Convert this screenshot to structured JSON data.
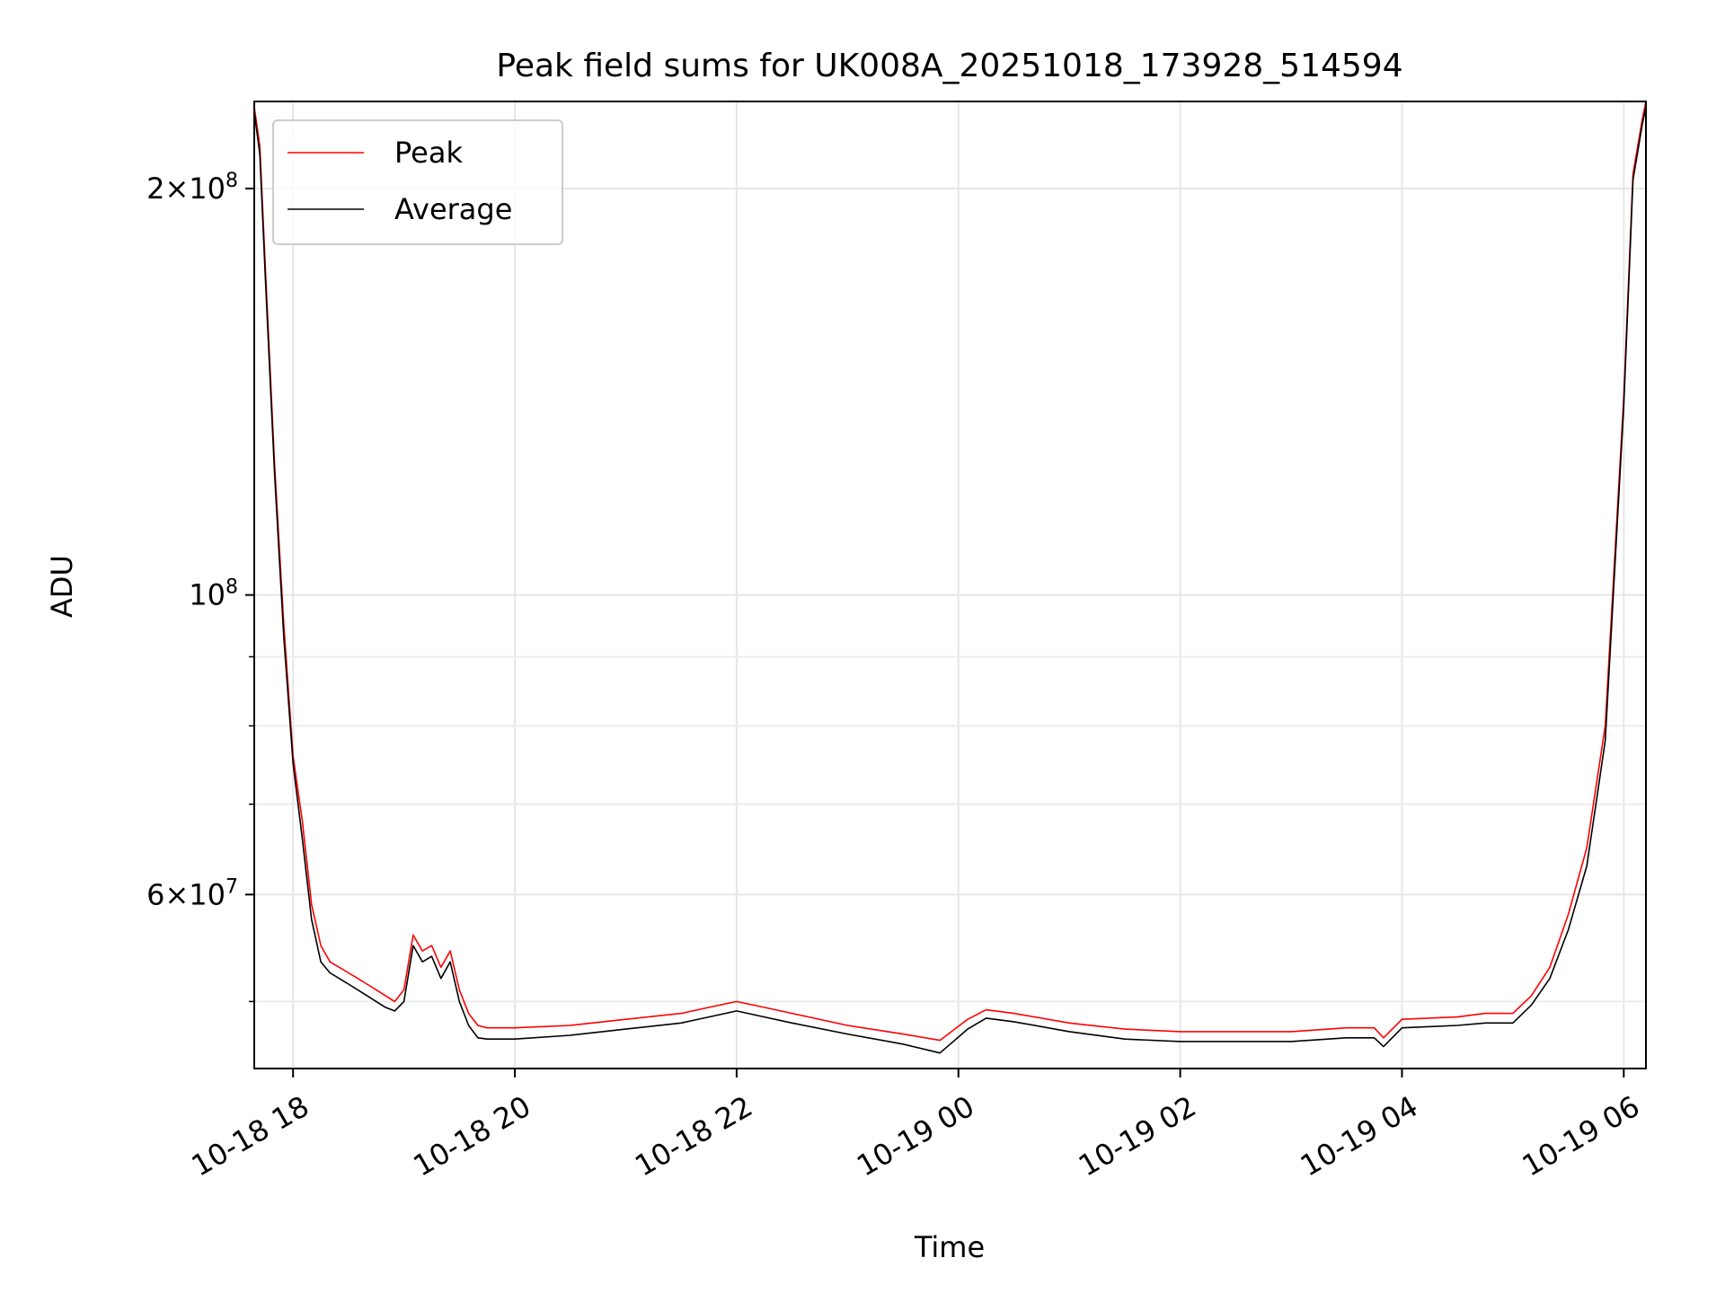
{
  "chart_data": {
    "type": "line",
    "title": "Peak field sums for UK008A_20251018_173928_514594",
    "xlabel": "Time",
    "ylabel": "ADU",
    "yscale": "log",
    "xlim": [
      "2025-10-18 17:39",
      "2025-10-19 06:12"
    ],
    "ylim": [
      44600000,
      232000000
    ],
    "grid": true,
    "legend": "top-left",
    "x_ticks": [
      "10-18 18",
      "10-18 20",
      "10-18 22",
      "10-19 00",
      "10-19 02",
      "10-19 04",
      "10-19 06"
    ],
    "x_tick_times": [
      "2025-10-18 18:00",
      "2025-10-18 20:00",
      "2025-10-18 22:00",
      "2025-10-19 00:00",
      "2025-10-19 02:00",
      "2025-10-19 04:00",
      "2025-10-19 06:00"
    ],
    "y_major_ticks": [
      {
        "value": 200000000,
        "mant": "2",
        "exp": "8"
      },
      {
        "value": 100000000,
        "mant": "",
        "exp": "8"
      },
      {
        "value": 60000000,
        "mant": "6",
        "exp": "7"
      }
    ],
    "y_minor_ticks": [
      50000000,
      70000000,
      80000000,
      90000000
    ],
    "series": [
      {
        "name": "Peak",
        "color": "#ff0000",
        "x": [
          "2025-10-18 17:39",
          "2025-10-18 17:42",
          "2025-10-18 17:45",
          "2025-10-18 17:50",
          "2025-10-18 17:55",
          "2025-10-18 18:00",
          "2025-10-18 18:05",
          "2025-10-18 18:10",
          "2025-10-18 18:15",
          "2025-10-18 18:20",
          "2025-10-18 18:25",
          "2025-10-18 18:30",
          "2025-10-18 18:35",
          "2025-10-18 18:40",
          "2025-10-18 18:45",
          "2025-10-18 18:50",
          "2025-10-18 18:55",
          "2025-10-18 19:00",
          "2025-10-18 19:05",
          "2025-10-18 19:10",
          "2025-10-18 19:15",
          "2025-10-18 19:20",
          "2025-10-18 19:25",
          "2025-10-18 19:30",
          "2025-10-18 19:35",
          "2025-10-18 19:40",
          "2025-10-18 19:45",
          "2025-10-18 19:50",
          "2025-10-18 19:55",
          "2025-10-18 20:00",
          "2025-10-18 20:30",
          "2025-10-18 21:00",
          "2025-10-18 21:30",
          "2025-10-18 21:45",
          "2025-10-18 22:00",
          "2025-10-18 22:15",
          "2025-10-18 22:30",
          "2025-10-18 23:00",
          "2025-10-18 23:30",
          "2025-10-18 23:50",
          "2025-10-19 00:05",
          "2025-10-19 00:15",
          "2025-10-19 00:30",
          "2025-10-19 01:00",
          "2025-10-19 01:30",
          "2025-10-19 02:00",
          "2025-10-19 02:30",
          "2025-10-19 03:00",
          "2025-10-19 03:30",
          "2025-10-19 03:45",
          "2025-10-19 03:50",
          "2025-10-19 04:00",
          "2025-10-19 04:30",
          "2025-10-19 04:45",
          "2025-10-19 05:00",
          "2025-10-19 05:10",
          "2025-10-19 05:20",
          "2025-10-19 05:30",
          "2025-10-19 05:40",
          "2025-10-19 05:50",
          "2025-10-19 06:00",
          "2025-10-19 06:05",
          "2025-10-19 06:10",
          "2025-10-19 06:12"
        ],
        "values": [
          230000000,
          215000000,
          175000000,
          125000000,
          95000000,
          76000000,
          68000000,
          59000000,
          55000000,
          53500000,
          53000000,
          52500000,
          52000000,
          51500000,
          51000000,
          50500000,
          50000000,
          51000000,
          56000000,
          54500000,
          55000000,
          53000000,
          54500000,
          51000000,
          49000000,
          48000000,
          47800000,
          47800000,
          47800000,
          47800000,
          48000000,
          48500000,
          49000000,
          49500000,
          50000000,
          49500000,
          49000000,
          48000000,
          47300000,
          46800000,
          48500000,
          49300000,
          49000000,
          48200000,
          47700000,
          47500000,
          47500000,
          47500000,
          47800000,
          47800000,
          47000000,
          48500000,
          48700000,
          49000000,
          49000000,
          50500000,
          53000000,
          58000000,
          65000000,
          80000000,
          140000000,
          205000000,
          225000000,
          232000000
        ]
      },
      {
        "name": "Average",
        "color": "#000000",
        "x": [
          "2025-10-18 17:39",
          "2025-10-18 17:42",
          "2025-10-18 17:45",
          "2025-10-18 17:50",
          "2025-10-18 17:55",
          "2025-10-18 18:00",
          "2025-10-18 18:05",
          "2025-10-18 18:10",
          "2025-10-18 18:15",
          "2025-10-18 18:20",
          "2025-10-18 18:25",
          "2025-10-18 18:30",
          "2025-10-18 18:35",
          "2025-10-18 18:40",
          "2025-10-18 18:45",
          "2025-10-18 18:50",
          "2025-10-18 18:55",
          "2025-10-18 19:00",
          "2025-10-18 19:05",
          "2025-10-18 19:10",
          "2025-10-18 19:15",
          "2025-10-18 19:20",
          "2025-10-18 19:25",
          "2025-10-18 19:30",
          "2025-10-18 19:35",
          "2025-10-18 19:40",
          "2025-10-18 19:45",
          "2025-10-18 19:50",
          "2025-10-18 19:55",
          "2025-10-18 20:00",
          "2025-10-18 20:30",
          "2025-10-18 21:00",
          "2025-10-18 21:30",
          "2025-10-18 21:45",
          "2025-10-18 22:00",
          "2025-10-18 22:15",
          "2025-10-18 22:30",
          "2025-10-18 23:00",
          "2025-10-18 23:30",
          "2025-10-18 23:50",
          "2025-10-19 00:05",
          "2025-10-19 00:15",
          "2025-10-19 00:30",
          "2025-10-19 01:00",
          "2025-10-19 01:30",
          "2025-10-19 02:00",
          "2025-10-19 02:30",
          "2025-10-19 03:00",
          "2025-10-19 03:30",
          "2025-10-19 03:45",
          "2025-10-19 03:50",
          "2025-10-19 04:00",
          "2025-10-19 04:30",
          "2025-10-19 04:45",
          "2025-10-19 05:00",
          "2025-10-19 05:10",
          "2025-10-19 05:20",
          "2025-10-19 05:30",
          "2025-10-19 05:40",
          "2025-10-19 05:50",
          "2025-10-19 06:00",
          "2025-10-19 06:05",
          "2025-10-19 06:10",
          "2025-10-19 06:12"
        ],
        "values": [
          228000000,
          212000000,
          172000000,
          123000000,
          93000000,
          75000000,
          66000000,
          57500000,
          53500000,
          52500000,
          52000000,
          51500000,
          51000000,
          50500000,
          50000000,
          49500000,
          49200000,
          50000000,
          55000000,
          53500000,
          54000000,
          52000000,
          53500000,
          50000000,
          48000000,
          47000000,
          46900000,
          46900000,
          46900000,
          46900000,
          47200000,
          47700000,
          48200000,
          48700000,
          49200000,
          48700000,
          48200000,
          47300000,
          46500000,
          45800000,
          47700000,
          48600000,
          48300000,
          47500000,
          46900000,
          46700000,
          46700000,
          46700000,
          47000000,
          47000000,
          46300000,
          47800000,
          48000000,
          48200000,
          48200000,
          49700000,
          52000000,
          56500000,
          63000000,
          78000000,
          138000000,
          203000000,
          223000000,
          230000000
        ]
      }
    ]
  }
}
